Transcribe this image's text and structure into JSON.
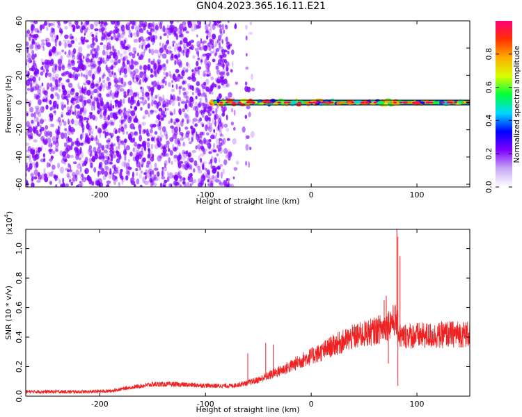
{
  "figure": {
    "title": "GN04.2023.365.16.11.E21"
  },
  "colors": {
    "spectrogram_noise": "#7f00ff",
    "line_series": "#ee2222",
    "colormap": [
      "#ffffff",
      "#c8a8f5",
      "#7f00ff",
      "#0000ff",
      "#00d8ff",
      "#00ff3c",
      "#d6ff00",
      "#ffae00",
      "#ff3000",
      "#ff0078"
    ]
  },
  "chart_data": [
    {
      "type": "heatmap",
      "xlabel": "Height of straight line (km)",
      "ylabel": "Frequency (Hz)",
      "xlim": [
        -270,
        150
      ],
      "ylim": [
        -62,
        60
      ],
      "xticks": [
        -200,
        -100,
        0,
        100
      ],
      "xtick_labels": [
        "-200",
        "-100",
        "0",
        "100"
      ],
      "yticks": [
        60,
        40,
        20,
        0,
        -20,
        -40,
        -60
      ],
      "ytick_labels": [
        "60",
        "40",
        "20",
        "0",
        "-20",
        "-40",
        "-60"
      ],
      "colorbar": {
        "label": "Normalized spectral amplitude",
        "range": [
          0,
          1
        ],
        "ticks": [
          0.0,
          0.2,
          0.4,
          0.6,
          0.8
        ],
        "tick_labels": [
          "0.0",
          "0.2",
          "0.4",
          "0.6",
          "0.8"
        ]
      },
      "noise_region_x": [
        -270,
        -55
      ],
      "signal_band": {
        "x_start": -95,
        "x_end": 150,
        "frequency": 0,
        "amplitude": 0.95
      }
    },
    {
      "type": "line",
      "xlabel": "Height of straight line (km)",
      "ylabel": "SNR (10 * v/v)",
      "y_exponent_label": "(x10",
      "y_exponent_power": "4",
      "y_exponent_close": ")",
      "xlim": [
        -270,
        150
      ],
      "ylim": [
        0,
        1.13
      ],
      "xticks": [
        -200,
        -100,
        0,
        100
      ],
      "xtick_labels": [
        "-200",
        "-100",
        "0",
        "100"
      ],
      "yticks": [
        0.0,
        0.2,
        0.4,
        0.6,
        0.8,
        1.0
      ],
      "ytick_labels": [
        "0.0",
        "0.2",
        "0.4",
        "0.6",
        "0.8",
        "1.0"
      ],
      "series": [
        {
          "x": [
            -270,
            -250,
            -230,
            -210,
            -190,
            -170,
            -150,
            -130,
            -110,
            -90,
            -75,
            -60,
            -50,
            -40,
            -30,
            -20,
            -10,
            0,
            10,
            20,
            30,
            40,
            50,
            60,
            70,
            75,
            80,
            83,
            86,
            90,
            100,
            110,
            120,
            130,
            140,
            150
          ],
          "y": [
            0.03,
            0.03,
            0.03,
            0.03,
            0.035,
            0.06,
            0.08,
            0.08,
            0.075,
            0.07,
            0.07,
            0.09,
            0.11,
            0.14,
            0.17,
            0.2,
            0.24,
            0.27,
            0.3,
            0.34,
            0.37,
            0.4,
            0.42,
            0.44,
            0.47,
            0.5,
            0.52,
            0.42,
            0.4,
            0.41,
            0.41,
            0.41,
            0.41,
            0.42,
            0.42,
            0.42
          ]
        }
      ],
      "spikes": [
        {
          "x": -60,
          "y": 0.29
        },
        {
          "x": -43,
          "y": 0.36
        },
        {
          "x": -36,
          "y": 0.35
        },
        {
          "x": 69,
          "y": 0.65
        },
        {
          "x": 71,
          "y": 0.68
        },
        {
          "x": 81,
          "y": 1.13
        },
        {
          "x": 82,
          "y": 1.08
        },
        {
          "x": 84,
          "y": 0.95
        },
        {
          "x": 82,
          "y": 0.07
        },
        {
          "x": 73,
          "y": 0.22
        }
      ]
    }
  ]
}
